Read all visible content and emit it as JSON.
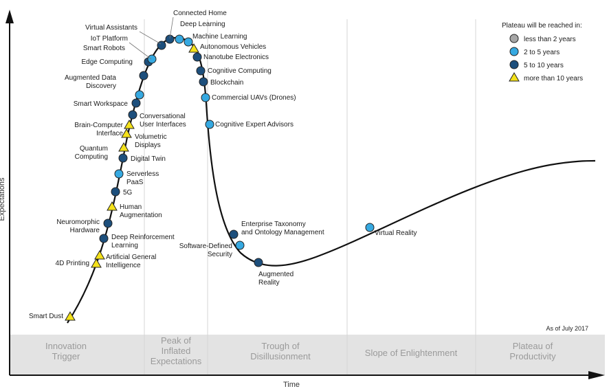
{
  "chart_data": {
    "type": "scatter",
    "y_axis_label": "Expectations",
    "x_axis_label": "Time",
    "as_of": "As of July 2017",
    "phases": [
      [
        "Innovation",
        "Trigger"
      ],
      [
        "Peak of",
        "Inflated",
        "Expectations"
      ],
      [
        "Trough of",
        "Disillusionment"
      ],
      [
        "Slope of Enlightenment"
      ],
      [
        "Plateau of",
        "Productivity"
      ]
    ],
    "legend": {
      "title": "Plateau will be reached in:",
      "items": [
        {
          "key": "lt2",
          "label": "less than 2 years",
          "shape": "circle",
          "color": "#a6a6a6"
        },
        {
          "key": "2to5",
          "label": "2 to 5 years",
          "shape": "circle",
          "color": "#36a9e1"
        },
        {
          "key": "5to10",
          "label": "5 to 10 years",
          "shape": "circle",
          "color": "#1d4f7c"
        },
        {
          "key": "gt10",
          "label": "more than 10 years",
          "shape": "triangle",
          "color": "#f4e11a"
        }
      ]
    },
    "technologies": [
      {
        "name": [
          "Smart Dust"
        ],
        "cat": "gt10"
      },
      {
        "name": [
          "4D Printing"
        ],
        "cat": "gt10"
      },
      {
        "name": [
          "Artificial General",
          "Intelligence"
        ],
        "cat": "gt10"
      },
      {
        "name": [
          "Deep Reinforcement",
          "Learning"
        ],
        "cat": "5to10"
      },
      {
        "name": [
          "Neuromorphic",
          "Hardware"
        ],
        "cat": "5to10"
      },
      {
        "name": [
          "Human",
          "Augmentation"
        ],
        "cat": "gt10"
      },
      {
        "name": [
          "5G"
        ],
        "cat": "5to10"
      },
      {
        "name": [
          "Serverless",
          "PaaS"
        ],
        "cat": "2to5"
      },
      {
        "name": [
          "Digital Twin"
        ],
        "cat": "5to10"
      },
      {
        "name": [
          "Quantum",
          "Computing"
        ],
        "cat": "gt10"
      },
      {
        "name": [
          "Volumetric",
          "Displays"
        ],
        "cat": "gt10"
      },
      {
        "name": [
          "Brain-Computer",
          "Interface"
        ],
        "cat": "gt10"
      },
      {
        "name": [
          "Conversational",
          "User Interfaces"
        ],
        "cat": "5to10"
      },
      {
        "name": [
          "Smart Workspace"
        ],
        "cat": "5to10"
      },
      {
        "name": [
          "Augmented Data",
          "Discovery"
        ],
        "cat": "2to5"
      },
      {
        "name": [
          "Edge Computing"
        ],
        "cat": "5to10"
      },
      {
        "name": [
          "Smart Robots"
        ],
        "cat": "5to10"
      },
      {
        "name": [
          "IoT Platform"
        ],
        "cat": "2to5"
      },
      {
        "name": [
          "Virtual Assistants"
        ],
        "cat": "5to10"
      },
      {
        "name": [
          "Connected Home"
        ],
        "cat": "5to10"
      },
      {
        "name": [
          "Deep Learning"
        ],
        "cat": "2to5"
      },
      {
        "name": [
          "Machine Learning"
        ],
        "cat": "2to5"
      },
      {
        "name": [
          "Autonomous Vehicles"
        ],
        "cat": "gt10"
      },
      {
        "name": [
          "Nanotube Electronics"
        ],
        "cat": "5to10"
      },
      {
        "name": [
          "Cognitive Computing"
        ],
        "cat": "5to10"
      },
      {
        "name": [
          "Blockchain"
        ],
        "cat": "5to10"
      },
      {
        "name": [
          "Commercial UAVs (Drones)"
        ],
        "cat": "2to5"
      },
      {
        "name": [
          "Cognitive Expert Advisors"
        ],
        "cat": "2to5"
      },
      {
        "name": [
          "Enterprise Taxonomy",
          "and Ontology Management"
        ],
        "cat": "5to10"
      },
      {
        "name": [
          "Software-Defined",
          "Security"
        ],
        "cat": "2to5"
      },
      {
        "name": [
          "Augmented",
          "Reality"
        ],
        "cat": "5to10"
      },
      {
        "name": [
          "Virtual Reality"
        ],
        "cat": "2to5"
      }
    ]
  }
}
